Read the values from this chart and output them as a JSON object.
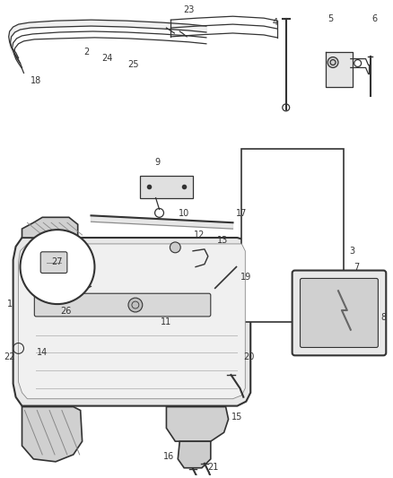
{
  "background_color": "#ffffff",
  "fig_width": 4.38,
  "fig_height": 5.33,
  "dpi": 100,
  "line_color": "#333333",
  "fill_light": "#eeeeee",
  "fill_mid": "#dddddd",
  "fill_dark": "#cccccc"
}
